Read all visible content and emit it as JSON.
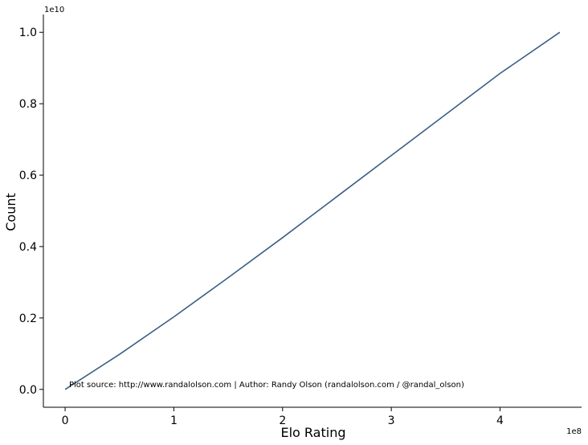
{
  "chart_data": {
    "type": "line",
    "title": "",
    "xlabel": "Elo Rating",
    "ylabel": "Count",
    "x_offset_text": "1e8",
    "y_offset_text": "1e10",
    "xlim": [
      -0.2,
      4.75
    ],
    "ylim": [
      -0.05,
      1.05
    ],
    "xticks": [
      0,
      1,
      2,
      3,
      4
    ],
    "yticks": [
      0.0,
      0.2,
      0.4,
      0.6,
      0.8,
      1.0
    ],
    "xtick_labels": [
      "0",
      "1",
      "2",
      "3",
      "4"
    ],
    "ytick_labels": [
      "0.0",
      "0.2",
      "0.4",
      "0.6",
      "0.8",
      "1.0"
    ],
    "grid": false,
    "line_color": "#3a5f85",
    "series": [
      {
        "x": [
          0,
          0.5,
          1.0,
          1.5,
          2.0,
          2.5,
          3.0,
          3.5,
          4.0,
          4.55
        ],
        "y": [
          0.0,
          0.098,
          0.203,
          0.313,
          0.425,
          0.54,
          0.655,
          0.77,
          0.885,
          1.0
        ]
      }
    ],
    "annotation": "Plot source: http://www.randalolson.com | Author: Randy Olson (randalolson.com / @randal_olson)"
  }
}
